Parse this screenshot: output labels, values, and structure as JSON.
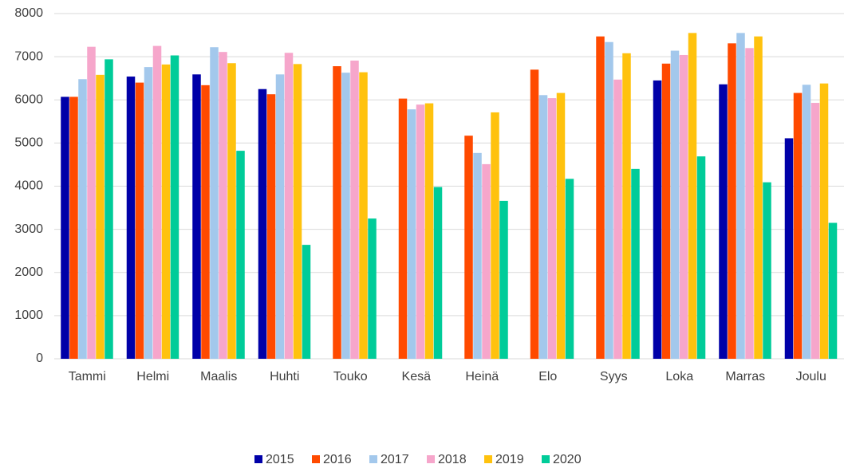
{
  "chart_data": {
    "type": "bar",
    "categories": [
      "Tammi",
      "Helmi",
      "Maalis",
      "Huhti",
      "Touko",
      "Kesä",
      "Heinä",
      "Elo",
      "Syys",
      "Loka",
      "Marras",
      "Joulu"
    ],
    "series": [
      {
        "name": "2015",
        "color": "#0000a8",
        "values": [
          6070,
          6540,
          6590,
          6250,
          null,
          null,
          null,
          null,
          null,
          6450,
          6360,
          5110
        ]
      },
      {
        "name": "2016",
        "color": "#ff4a00",
        "values": [
          6070,
          6400,
          6340,
          6130,
          6780,
          6030,
          5170,
          6700,
          7470,
          6840,
          7310,
          6160
        ]
      },
      {
        "name": "2017",
        "color": "#a3c8ec",
        "values": [
          6480,
          6760,
          7220,
          6590,
          6630,
          5780,
          4770,
          6110,
          7340,
          7140,
          7550,
          6350
        ]
      },
      {
        "name": "2018",
        "color": "#f6a6cb",
        "values": [
          7230,
          7250,
          7110,
          7090,
          6910,
          5890,
          4510,
          6040,
          6470,
          7040,
          7200,
          5930
        ]
      },
      {
        "name": "2019",
        "color": "#ffc20e",
        "values": [
          6580,
          6820,
          6850,
          6830,
          6640,
          5920,
          5710,
          6160,
          7080,
          7550,
          7470,
          6380
        ]
      },
      {
        "name": "2020",
        "color": "#00cc99",
        "values": [
          6940,
          7030,
          4820,
          2640,
          3250,
          3980,
          3660,
          4170,
          4400,
          4690,
          4090,
          3150
        ]
      }
    ],
    "ylim": [
      0,
      8000
    ],
    "yticks": [
      0,
      1000,
      2000,
      3000,
      4000,
      5000,
      6000,
      7000,
      8000
    ],
    "grid": true,
    "legend": "bottom"
  }
}
